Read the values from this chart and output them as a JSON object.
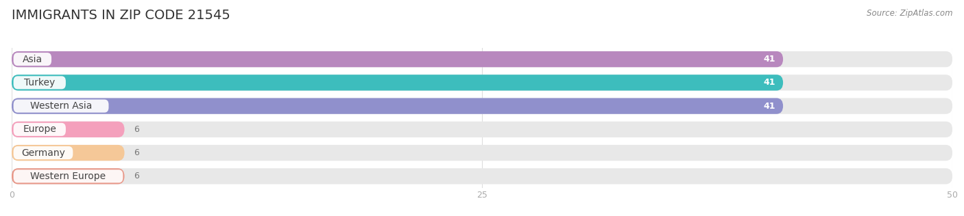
{
  "title": "IMMIGRANTS IN ZIP CODE 21545",
  "source": "Source: ZipAtlas.com",
  "categories": [
    "Asia",
    "Turkey",
    "Western Asia",
    "Europe",
    "Germany",
    "Western Europe"
  ],
  "values": [
    41,
    41,
    41,
    6,
    6,
    6
  ],
  "bar_colors": [
    "#b888be",
    "#3dbdbd",
    "#9090cc",
    "#f4a0bc",
    "#f5c898",
    "#e8998a"
  ],
  "bar_bg_color": "#e8e8e8",
  "background_color": "#ffffff",
  "xlim": [
    0,
    50
  ],
  "xticks": [
    0,
    25,
    50
  ],
  "label_fontsize": 10,
  "title_fontsize": 14,
  "value_fontsize": 9,
  "bar_height": 0.68,
  "bar_gap": 0.32,
  "value_label_color_large": "#ffffff",
  "value_label_color_small": "#777777",
  "pill_color": "#ffffff",
  "pill_text_color": "#444444",
  "tick_color": "#aaaaaa",
  "grid_color": "#dddddd",
  "title_color": "#333333",
  "source_color": "#888888"
}
